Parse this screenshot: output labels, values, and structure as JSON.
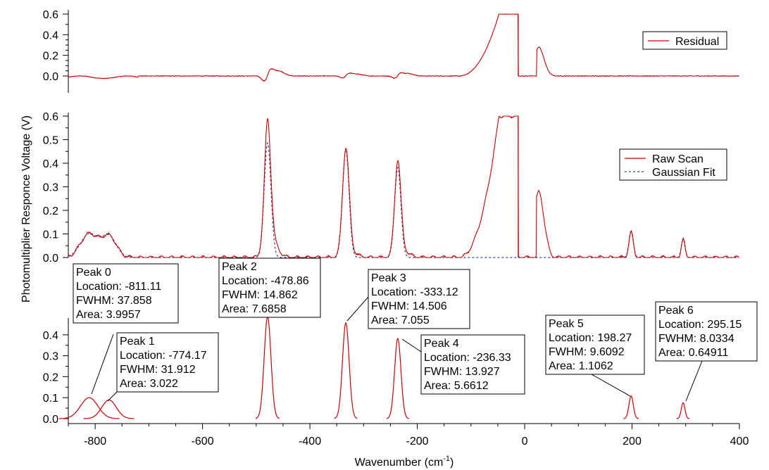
{
  "chart_data": {
    "type": "line",
    "xlabel": "Wavenumber (cm-1)",
    "xlabel_parts": {
      "base": "Wavenumber (cm",
      "sup": "-1",
      "close": ")"
    },
    "ylabel": "Photomultiplier Responce Voltage (V)",
    "xlim": [
      -850,
      400
    ],
    "x_ticks": [
      -800,
      -600,
      -400,
      -200,
      0,
      200,
      400
    ],
    "x_tick_labels": [
      "-800",
      "-600",
      "-400",
      "-200",
      "0",
      "200",
      "400"
    ],
    "panels": {
      "residual": {
        "ylim": [
          -0.15,
          0.6
        ],
        "y_ticks": [
          0.0,
          0.2,
          0.4,
          0.6
        ],
        "y_tick_labels": [
          "0.0",
          "0.2",
          "0.4",
          "0.6"
        ],
        "legend": {
          "placement": "top-right",
          "entries": [
            {
              "name": "Residual",
              "color": "#cc0000",
              "style": "solid"
            }
          ]
        }
      },
      "scan": {
        "ylim": [
          0.0,
          0.6
        ],
        "y_ticks": [
          0.0,
          0.1,
          0.2,
          0.3,
          0.4,
          0.5,
          0.6
        ],
        "y_tick_labels": [
          "0.0",
          "0.1",
          "0.2",
          "0.3",
          "0.4",
          "0.5",
          "0.6"
        ],
        "legend": {
          "placement": "right",
          "entries": [
            {
              "name": "Raw Scan",
              "color": "#cc0000",
              "style": "solid"
            },
            {
              "name": "Gaussian Fit",
              "color": "#3344aa",
              "style": "dashed"
            }
          ]
        }
      },
      "peaks": {
        "ylim": [
          0.0,
          0.48
        ],
        "y_ticks": [
          0.0,
          0.1,
          0.2,
          0.3,
          0.4
        ],
        "y_tick_labels": [
          "0.0",
          "0.1",
          "0.2",
          "0.3",
          "0.4"
        ]
      }
    },
    "peaks": [
      {
        "title": "Peak 0",
        "location": -811.11,
        "fwhm": 37.858,
        "area": 3.9957,
        "height": 0.1,
        "lines": [
          "Peak 0",
          "Location: -811.11",
          "FWHM: 37.858",
          "Area: 3.9957"
        ]
      },
      {
        "title": "Peak 1",
        "location": -774.17,
        "fwhm": 31.912,
        "area": 3.022,
        "height": 0.089,
        "lines": [
          "Peak 1",
          "Location: -774.17",
          "FWHM: 31.912",
          "Area: 3.022"
        ]
      },
      {
        "title": "Peak 2",
        "location": -478.86,
        "fwhm": 14.862,
        "area": 7.6858,
        "height": 0.486,
        "lines": [
          "Peak 2",
          "Location: -478.86",
          "FWHM: 14.862",
          "Area: 7.6858"
        ]
      },
      {
        "title": "Peak 3",
        "location": -333.12,
        "fwhm": 14.506,
        "area": 7.055,
        "height": 0.457,
        "lines": [
          "Peak 3",
          "Location: -333.12",
          "FWHM: 14.506",
          "Area: 7.055"
        ]
      },
      {
        "title": "Peak 4",
        "location": -236.33,
        "fwhm": 13.927,
        "area": 5.6612,
        "height": 0.382,
        "lines": [
          "Peak 4",
          "Location: -236.33",
          "FWHM: 13.927",
          "Area: 5.6612"
        ]
      },
      {
        "title": "Peak 5",
        "location": 198.27,
        "fwhm": 9.6092,
        "area": 1.1062,
        "height": 0.108,
        "lines": [
          "Peak 5",
          "Location: 198.27",
          "FWHM: 9.6092",
          "Area: 1.1062"
        ]
      },
      {
        "title": "Peak 6",
        "location": 295.15,
        "fwhm": 8.0334,
        "area": 0.64911,
        "height": 0.076,
        "lines": [
          "Peak 6",
          "Location: 295.15",
          "FWHM: 8.0334",
          "Area: 0.64911"
        ]
      }
    ],
    "extra_features": {
      "broad_band_center": -48,
      "cutoff_x": -12,
      "second_band_start": 22,
      "second_band_level": 0.28
    },
    "colors": {
      "raw": "#cc0000",
      "fit": "#3344aa",
      "residual": "#cc0000",
      "peak": "#cc0000"
    }
  }
}
